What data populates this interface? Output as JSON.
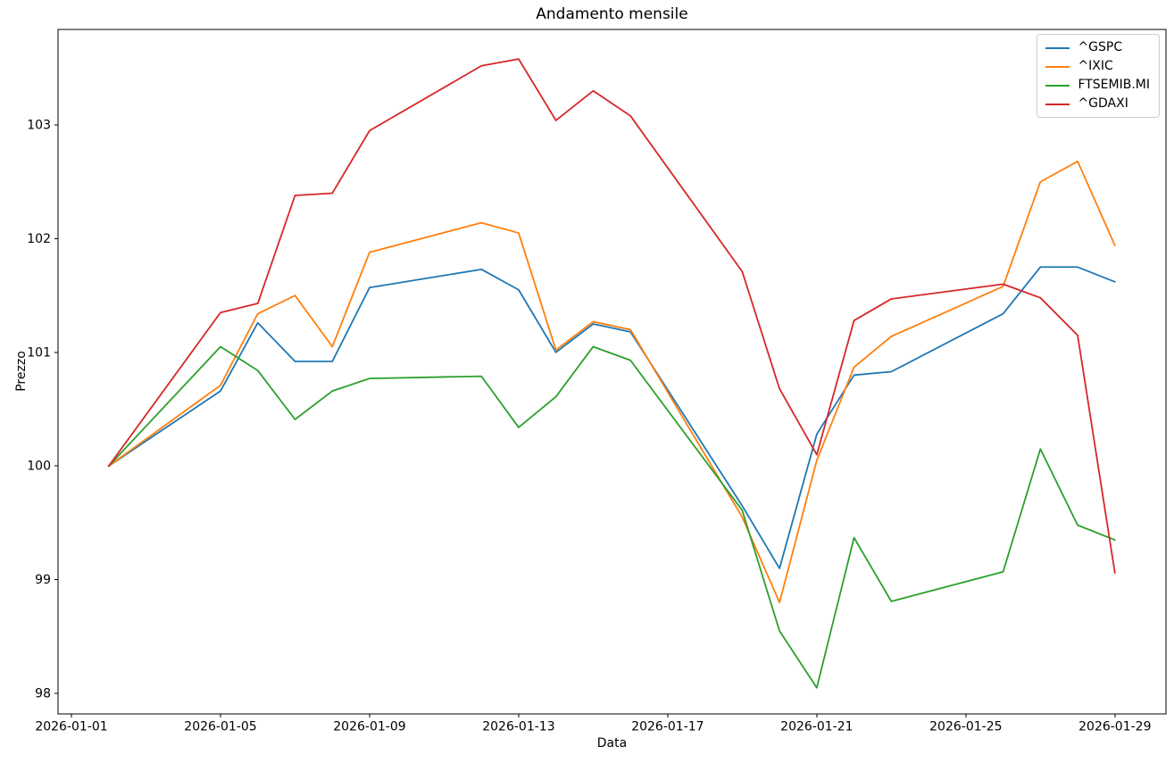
{
  "window": {
    "background": "#ffffff",
    "axis_color": "#000000",
    "text_color": "#000000"
  },
  "chart_data": {
    "type": "line",
    "title": "Andamento mensile",
    "xlabel": "Data",
    "ylabel": "Prezzo",
    "grid": false,
    "legend_position": "upper right",
    "xlim_days": [
      0.64,
      30.37
    ],
    "ylim": [
      97.82,
      103.84
    ],
    "x_ticks": [
      {
        "day": 1,
        "label": "2026-01-01"
      },
      {
        "day": 5,
        "label": "2026-01-05"
      },
      {
        "day": 9,
        "label": "2026-01-09"
      },
      {
        "day": 13,
        "label": "2026-01-13"
      },
      {
        "day": 17,
        "label": "2026-01-17"
      },
      {
        "day": 21,
        "label": "2026-01-21"
      },
      {
        "day": 25,
        "label": "2026-01-25"
      },
      {
        "day": 29,
        "label": "2026-01-29"
      }
    ],
    "y_ticks": [
      98,
      99,
      100,
      101,
      102,
      103
    ],
    "x_dates": [
      "2026-01-02",
      "2026-01-05",
      "2026-01-06",
      "2026-01-07",
      "2026-01-08",
      "2026-01-09",
      "2026-01-12",
      "2026-01-13",
      "2026-01-14",
      "2026-01-15",
      "2026-01-16",
      "2026-01-19",
      "2026-01-20",
      "2026-01-21",
      "2026-01-22",
      "2026-01-23",
      "2026-01-26",
      "2026-01-27",
      "2026-01-28",
      "2026-01-29"
    ],
    "x_days": [
      2,
      5,
      6,
      7,
      8,
      9,
      12,
      13,
      14,
      15,
      16,
      19,
      20,
      21,
      22,
      23,
      26,
      27,
      28,
      29
    ],
    "series": [
      {
        "name": "^GSPC",
        "color": "#1f77b4",
        "values": [
          100.0,
          100.66,
          101.26,
          100.92,
          100.92,
          101.57,
          101.73,
          101.55,
          101.0,
          101.25,
          101.18,
          99.65,
          99.1,
          100.28,
          100.8,
          100.83,
          101.34,
          101.75,
          101.75,
          101.62
        ]
      },
      {
        "name": "^IXIC",
        "color": "#ff7f0e",
        "values": [
          100.0,
          100.71,
          101.34,
          101.5,
          101.05,
          101.88,
          102.14,
          102.05,
          101.02,
          101.27,
          101.2,
          99.55,
          98.8,
          100.05,
          100.87,
          101.14,
          101.58,
          102.5,
          102.68,
          101.94
        ]
      },
      {
        "name": "FTSEMIB.MI",
        "color": "#2ca02c",
        "values": [
          100.0,
          101.05,
          100.84,
          100.41,
          100.66,
          100.77,
          100.79,
          100.34,
          100.61,
          101.05,
          100.93,
          99.61,
          98.55,
          98.05,
          99.37,
          98.81,
          99.07,
          100.15,
          99.48,
          99.35
        ]
      },
      {
        "name": "^GDAXI",
        "color": "#d62728",
        "values": [
          100.0,
          101.35,
          101.43,
          102.38,
          102.4,
          102.95,
          103.52,
          103.58,
          103.04,
          103.3,
          103.08,
          101.71,
          100.68,
          100.1,
          101.28,
          101.47,
          101.6,
          101.48,
          101.15,
          99.06
        ]
      }
    ]
  }
}
